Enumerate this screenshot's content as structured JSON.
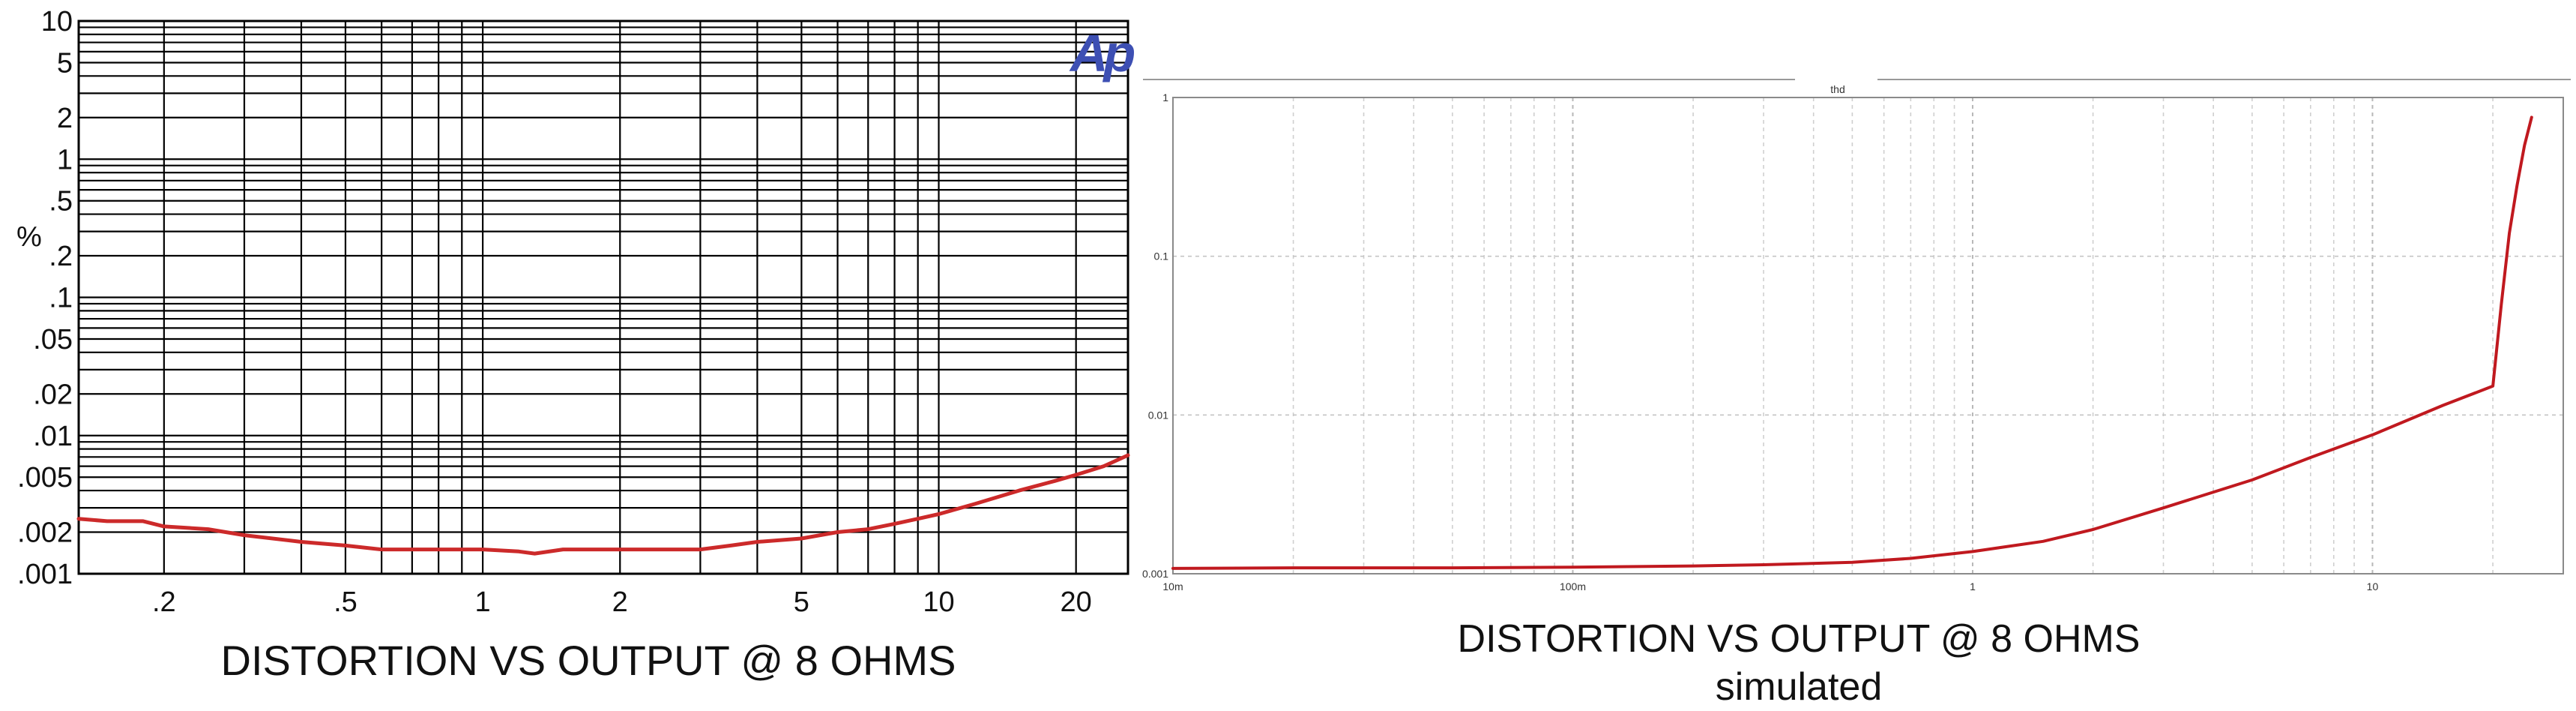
{
  "chart_data": [
    {
      "type": "line",
      "scale": "log-log",
      "title": "DISTORTION VS OUTPUT @ 8 OHMS",
      "subtitle": "",
      "xlabel": "",
      "ylabel": "%",
      "xlim": [
        0.13,
        26
      ],
      "ylim": [
        0.001,
        10
      ],
      "grid": true,
      "logo_text": "Ap",
      "x_ticks": [
        0.2,
        0.5,
        1,
        2,
        5,
        10,
        20
      ],
      "x_tick_labels": [
        ".2",
        ".5",
        "1",
        "2",
        "5",
        "10",
        "20"
      ],
      "y_ticks": [
        0.001,
        0.002,
        0.005,
        0.01,
        0.02,
        0.05,
        0.1,
        0.2,
        0.5,
        1,
        2,
        5,
        10
      ],
      "y_tick_labels": [
        ".001",
        ".002",
        ".005",
        ".01",
        ".02",
        ".05",
        ".1",
        ".2",
        ".5",
        "1",
        "2",
        "5",
        "10"
      ],
      "line_color": "#cc2a2a",
      "series": [
        {
          "x": [
            0.13,
            0.15,
            0.18,
            0.2,
            0.25,
            0.3,
            0.4,
            0.5,
            0.6,
            0.7,
            0.8,
            1.0,
            1.2,
            1.3,
            1.5,
            1.8,
            2.0,
            2.5,
            3.0,
            3.5,
            4.0,
            5.0,
            6.0,
            7.0,
            8.0,
            9.0,
            10.0,
            12.0,
            15.0,
            18.0,
            20.0,
            23.0,
            26.0
          ],
          "y": [
            0.0025,
            0.0024,
            0.0024,
            0.0022,
            0.0021,
            0.0019,
            0.0017,
            0.0016,
            0.0015,
            0.0015,
            0.0015,
            0.0015,
            0.00145,
            0.0014,
            0.0015,
            0.0015,
            0.0015,
            0.0015,
            0.0015,
            0.0016,
            0.0017,
            0.0018,
            0.002,
            0.0021,
            0.0023,
            0.0025,
            0.0027,
            0.0032,
            0.004,
            0.0047,
            0.0052,
            0.006,
            0.0072
          ]
        }
      ]
    },
    {
      "type": "line",
      "scale": "log-log",
      "title": "thd",
      "subtitle": "",
      "xlabel": "",
      "ylabel": "",
      "xlim": [
        0.01,
        30
      ],
      "ylim": [
        0.001,
        1
      ],
      "grid": true,
      "x_ticks": [
        0.01,
        0.1,
        1,
        10
      ],
      "x_tick_labels": [
        "10m",
        "100m",
        "1",
        "10"
      ],
      "y_ticks": [
        0.001,
        0.01,
        0.1,
        1
      ],
      "y_tick_labels": [
        "0.001",
        "0.01",
        "0.1",
        "1"
      ],
      "line_color": "#c0191f",
      "series": [
        {
          "x": [
            0.01,
            0.02,
            0.05,
            0.1,
            0.2,
            0.3,
            0.5,
            0.7,
            1.0,
            1.5,
            2.0,
            3.0,
            5.0,
            7.0,
            10.0,
            15.0,
            20.0,
            21.0,
            22.0,
            23.0,
            24.0,
            25.0
          ],
          "y": [
            0.00108,
            0.00109,
            0.00109,
            0.0011,
            0.00112,
            0.00114,
            0.00118,
            0.00125,
            0.00138,
            0.0016,
            0.0019,
            0.0026,
            0.0039,
            0.0054,
            0.0075,
            0.0115,
            0.0152,
            0.05,
            0.14,
            0.28,
            0.5,
            0.75
          ]
        }
      ]
    }
  ],
  "captions": {
    "left": "DISTORTION VS OUTPUT @ 8 OHMS",
    "right_line1": "DISTORTION VS OUTPUT @ 8 OHMS",
    "right_line2": "simulated"
  }
}
